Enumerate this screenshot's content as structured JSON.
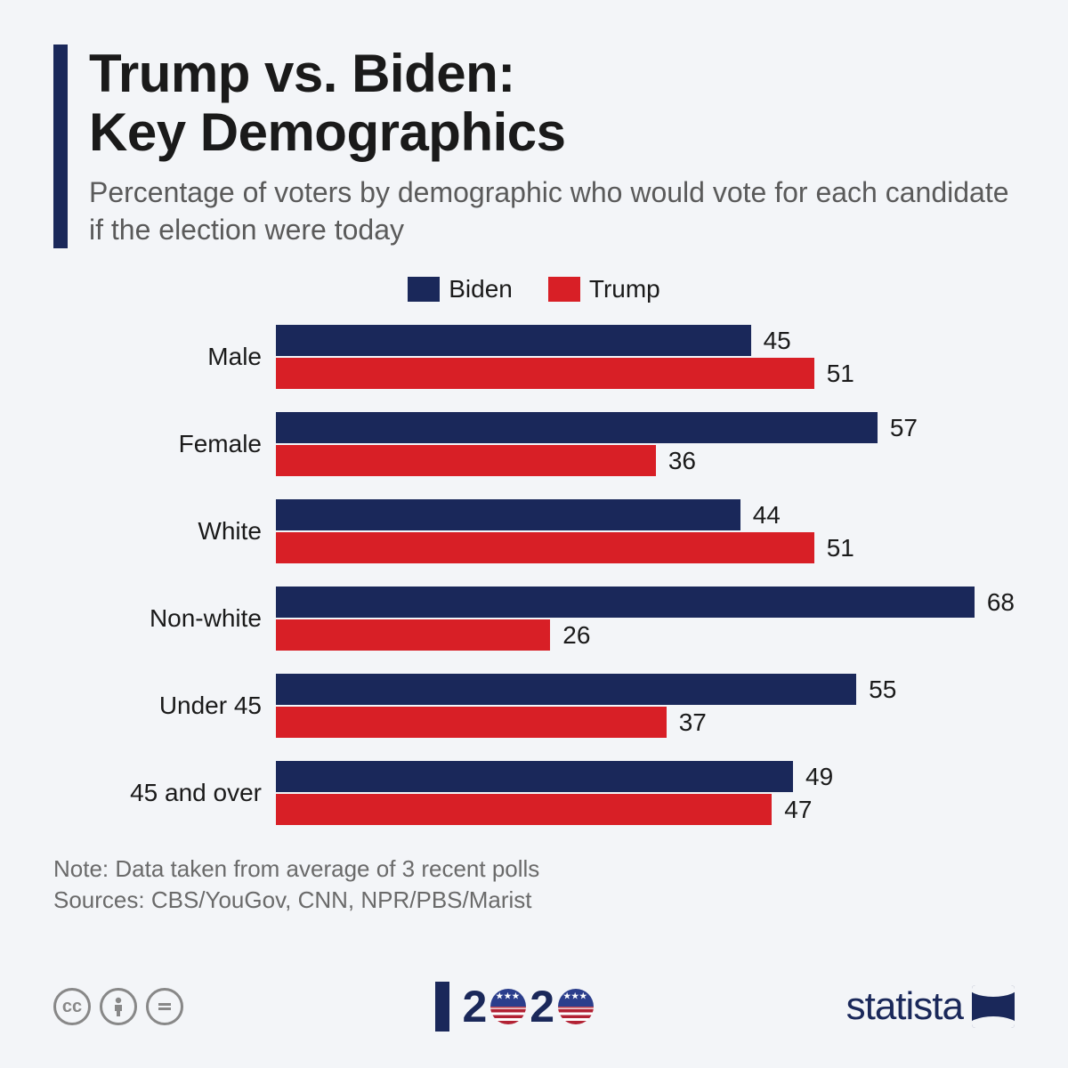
{
  "title_line1": "Trump vs. Biden:",
  "title_line2": "Key Demographics",
  "subtitle": "Percentage of voters by demographic who would vote for each candidate if the election were today",
  "legend": [
    {
      "label": "Biden",
      "color": "#1a285a"
    },
    {
      "label": "Trump",
      "color": "#d81f26"
    }
  ],
  "chart": {
    "type": "bar",
    "max_value": 70,
    "bar_colors": {
      "biden": "#1a285a",
      "trump": "#d81f26"
    },
    "categories": [
      {
        "label": "Male",
        "biden": 45,
        "trump": 51
      },
      {
        "label": "Female",
        "biden": 57,
        "trump": 36
      },
      {
        "label": "White",
        "biden": 44,
        "trump": 51
      },
      {
        "label": "Non-white",
        "biden": 68,
        "trump": 26
      },
      {
        "label": "Under 45",
        "biden": 55,
        "trump": 37
      },
      {
        "label": "45 and over",
        "biden": 49,
        "trump": 47
      }
    ]
  },
  "note_line1": "Note: Data taken from average of 3 recent polls",
  "note_line2": "Sources: CBS/YouGov, CNN, NPR/PBS/Marist",
  "year_digits": [
    "2",
    "0",
    "2",
    "0"
  ],
  "brand": "statista"
}
